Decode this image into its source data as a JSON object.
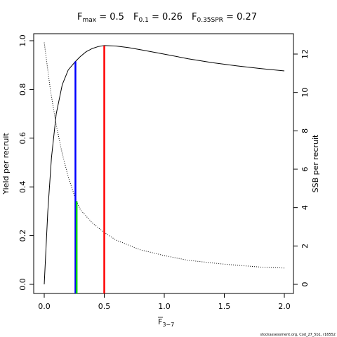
{
  "chart_data": {
    "type": "line",
    "title_parts": [
      {
        "main": "F",
        "sub": "max",
        "rest": " = 0.5"
      },
      {
        "main": "F",
        "sub": "0.1",
        "rest": " = 0.26"
      },
      {
        "main": "F",
        "sub": "0.35SPR",
        "rest": " = 0.27"
      }
    ],
    "xlabel_main": "F",
    "xlabel_sub": "3−7",
    "ylabel_left": "Yield per recruit",
    "ylabel_right": "SSB per recruit",
    "xlim": [
      0,
      2
    ],
    "ylim_left": [
      0,
      1
    ],
    "ylim_right": [
      0,
      12.8
    ],
    "x_ticks": [
      "0.0",
      "0.5",
      "1.0",
      "1.5",
      "2.0"
    ],
    "y_left_ticks": [
      "0.0",
      "0.2",
      "0.4",
      "0.6",
      "0.8",
      "1.0"
    ],
    "y_right_ticks": [
      "0",
      "2",
      "4",
      "6",
      "8",
      "10",
      "12"
    ],
    "series": [
      {
        "axis": "left",
        "style": "solid",
        "x": [
          0,
          0.03,
          0.06,
          0.1,
          0.15,
          0.2,
          0.26,
          0.3,
          0.35,
          0.4,
          0.45,
          0.5,
          0.6,
          0.7,
          0.8,
          1.0,
          1.2,
          1.4,
          1.6,
          1.8,
          2.0
        ],
        "y": [
          0.0,
          0.3,
          0.52,
          0.7,
          0.82,
          0.88,
          0.915,
          0.935,
          0.955,
          0.968,
          0.976,
          0.98,
          0.978,
          0.972,
          0.963,
          0.945,
          0.926,
          0.91,
          0.897,
          0.886,
          0.876
        ]
      },
      {
        "axis": "right",
        "style": "dotted",
        "x": [
          0,
          0.05,
          0.1,
          0.15,
          0.2,
          0.25,
          0.27,
          0.3,
          0.4,
          0.5,
          0.6,
          0.8,
          1.0,
          1.2,
          1.5,
          1.8,
          2.0
        ],
        "y": [
          12.6,
          10.2,
          8.3,
          6.8,
          5.6,
          4.65,
          4.32,
          3.9,
          3.2,
          2.7,
          2.3,
          1.8,
          1.5,
          1.25,
          1.05,
          0.9,
          0.85
        ]
      }
    ],
    "reference_lines": [
      {
        "name": "F0.1",
        "x": 0.26,
        "axis": "left",
        "y_top": 0.915,
        "color": "#0000ff"
      },
      {
        "name": "F0.35SPR",
        "x": 0.27,
        "axis": "right",
        "y_top": 4.32,
        "color": "#00cc00"
      },
      {
        "name": "Fmax",
        "x": 0.5,
        "axis": "left",
        "y_top": 0.98,
        "color": "#ff0000"
      }
    ],
    "grid": false,
    "legend": "none"
  },
  "footer": "stockassessment.org, Cod_27_5b1, r16552"
}
